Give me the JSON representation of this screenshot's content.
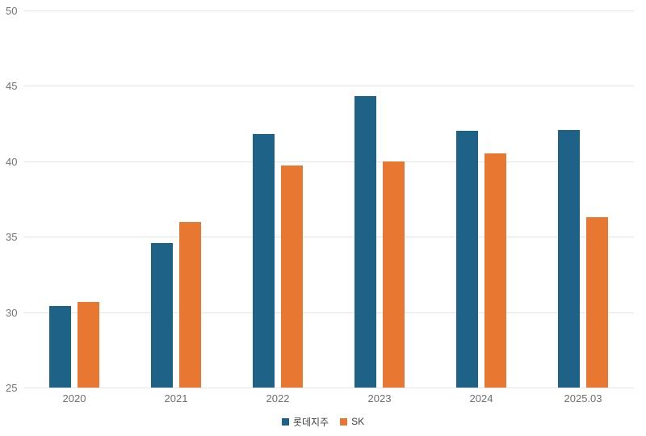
{
  "chart_data": {
    "type": "bar",
    "title": "",
    "xlabel": "",
    "ylabel": "",
    "categories": [
      "2020",
      "2021",
      "2022",
      "2023",
      "2024",
      "2025.03"
    ],
    "series": [
      {
        "name": "롯데지주",
        "color": "#1E6387",
        "values": [
          30.4,
          34.6,
          41.8,
          44.3,
          42.0,
          42.1
        ]
      },
      {
        "name": "SK",
        "color": "#E87732",
        "values": [
          30.7,
          36.0,
          39.7,
          40.0,
          40.5,
          36.3
        ]
      }
    ],
    "ylim": [
      25,
      50
    ],
    "yticks": [
      25,
      30,
      35,
      40,
      45,
      50
    ],
    "grid": "horizontal",
    "legend_position": "bottom-center",
    "colors": {
      "grid": "#E4E4E4",
      "axis_text": "#737373",
      "x_axis_text": "#6E6E6E",
      "legend_text": "#3F3F3F",
      "background": "#FFFFFF"
    }
  }
}
